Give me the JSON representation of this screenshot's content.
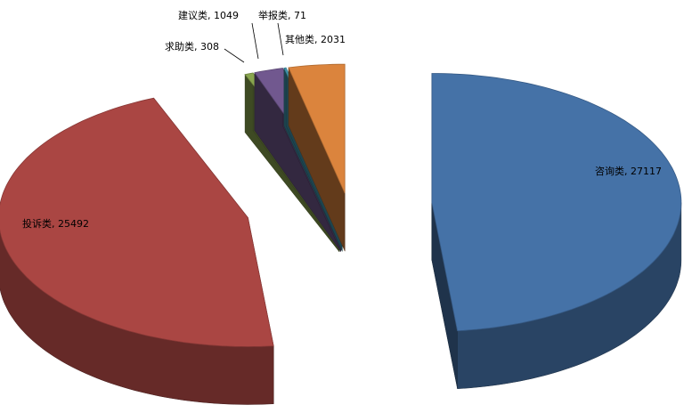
{
  "chart_data": {
    "type": "pie3d",
    "values": [
      27117,
      25492,
      308,
      1049,
      71,
      2031
    ],
    "value_labels": [
      "咨询类, 27117",
      "投诉类, 25492",
      "求助类, 308",
      "建议类, 1049",
      "举报类, 71",
      "其他类, 2031"
    ],
    "colors": [
      "#4572a7",
      "#aa4643",
      "#89a54e",
      "#71588f",
      "#4198af",
      "#db843d"
    ]
  }
}
